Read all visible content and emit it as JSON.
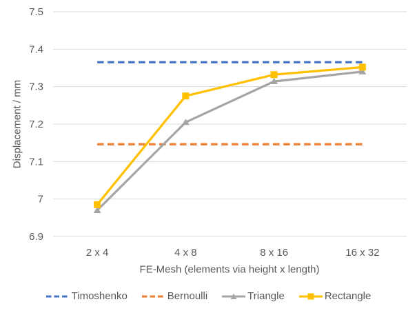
{
  "chart_data": {
    "type": "line",
    "xlabel": "FE-Mesh (elements via height x length)",
    "ylabel": "Displacement / mm",
    "categories": [
      "2 x 4",
      "4 x 8",
      "8 x 16",
      "16 x 32"
    ],
    "series": [
      {
        "name": "Timoshenko",
        "color": "#4472C4",
        "line_style": "dashed",
        "marker": "none",
        "values": [
          7.365,
          7.365,
          7.365,
          7.365
        ]
      },
      {
        "name": "Bernoulli",
        "color": "#ED7D31",
        "line_style": "dashed",
        "marker": "none",
        "values": [
          7.146,
          7.146,
          7.146,
          7.146
        ]
      },
      {
        "name": "Triangle",
        "color": "#A5A5A5",
        "line_style": "solid",
        "marker": "triangle",
        "values": [
          6.97,
          7.205,
          7.314,
          7.34
        ]
      },
      {
        "name": "Rectangle",
        "color": "#FFC000",
        "line_style": "solid",
        "marker": "square",
        "values": [
          6.985,
          7.275,
          7.332,
          7.352
        ]
      }
    ],
    "ylim": [
      6.9,
      7.5
    ],
    "yticks": [
      7.5,
      7.4,
      7.3,
      7.2,
      7.1,
      7,
      6.9
    ],
    "ytick_labels": [
      "7.5",
      "7.4",
      "7.3",
      "7.2",
      "7.1",
      "7",
      "6.9"
    ],
    "grid": true,
    "legend_position": "bottom",
    "style": {
      "gridline_color": "#D9D9D9",
      "text_color": "#595959",
      "background": "#FFFFFF"
    }
  }
}
